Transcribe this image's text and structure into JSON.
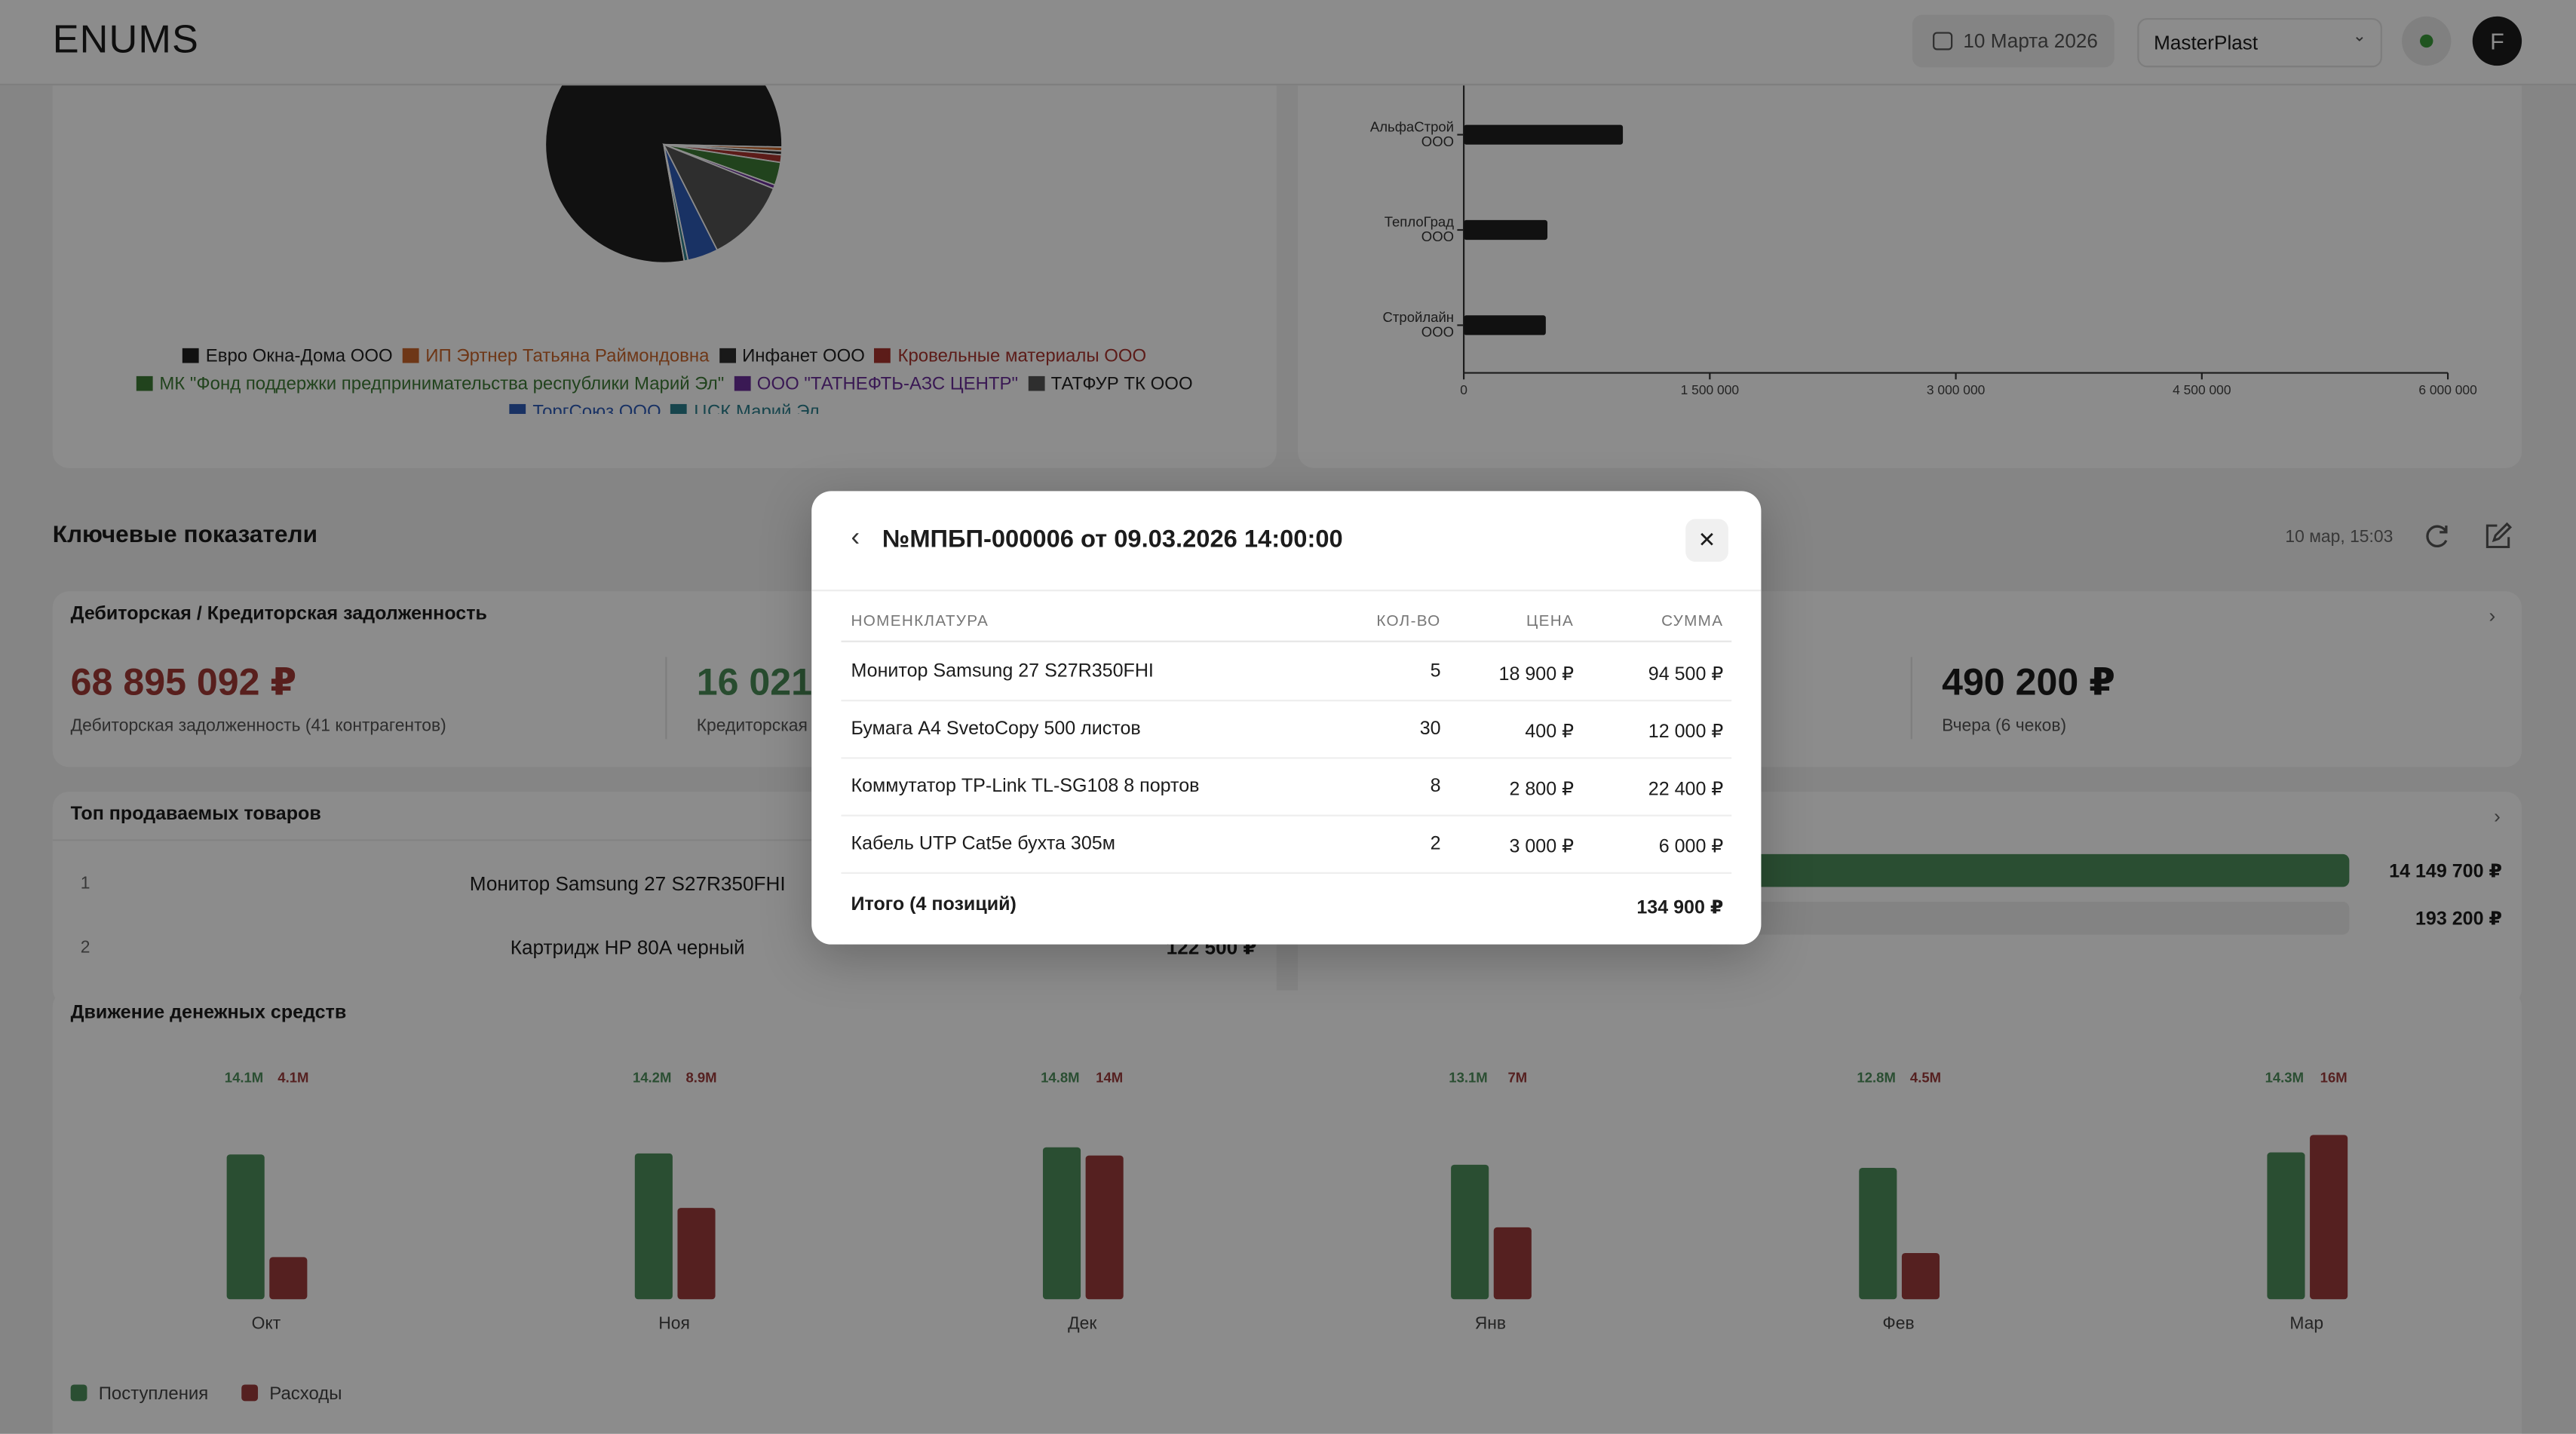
{
  "header": {
    "logo": "ENUMS",
    "date": "10 Марта 2026",
    "company": "MasterPlast",
    "avatar": "F"
  },
  "chart_data": [
    {
      "type": "pie",
      "categories": [
        "Евро Окна-Дома ООО",
        "ИП Эртнер Татьяна Раймондовна",
        "Инфанет ООО",
        "Кровельные материалы ООО",
        "МК \"Фонд поддержки предпринимательства республики Марий Эл\"",
        "ООО \"ТАТНЕФТЬ-АЗС ЦЕНТР\"",
        "ТАТФУР ТК ООО",
        "ТоргСоюз ООО",
        "ЦСК Марий Эл"
      ],
      "values": [
        75,
        0.5,
        0.5,
        1,
        3,
        0.5,
        11,
        4,
        0.5
      ],
      "colors": [
        "#1f1f1f",
        "#c8642a",
        "#2e2e2e",
        "#a8332e",
        "#3d7a36",
        "#6a2e9a",
        "#545454",
        "#2f5bb7",
        "#2b7f8c"
      ]
    },
    {
      "type": "hbar",
      "categories": [
        "АльфаСтрой ООО",
        "ТеплоГрад ООО",
        "Стройлайн ООО"
      ],
      "values": [
        970000,
        510000,
        500000
      ],
      "color": "#1f1f1f",
      "xlim": [
        0,
        6000000
      ],
      "xticks": [
        0,
        {
          "value": 1500000,
          "label": "1 500 000"
        },
        {
          "value": 3000000,
          "label": "3 000 000"
        },
        {
          "value": 4500000,
          "label": "4 500 000"
        },
        {
          "value": 6000000,
          "label": "6 000 000"
        }
      ]
    },
    {
      "type": "progress",
      "values": [
        14149700,
        193200
      ],
      "value_labels": [
        "14 149 700 ₽",
        "193 200 ₽"
      ],
      "color": "#4e8f5c"
    },
    {
      "type": "grouped_bar",
      "title": "Движение денежных средств",
      "categories": [
        "Окт",
        "Ноя",
        "Дек",
        "Янв",
        "Фев",
        "Мар"
      ],
      "series": [
        {
          "name": "Поступления",
          "color": "#4e8f5c",
          "values": [
            14100000,
            14200000,
            14800000,
            13100000,
            12800000,
            14300000
          ],
          "value_labels": [
            "14.1M",
            "14.2M",
            "14.8M",
            "13.1M",
            "12.8M",
            "14.3M"
          ]
        },
        {
          "name": "Расходы",
          "color": "#9c3b3b",
          "values": [
            4100000,
            8900000,
            14000000,
            7000000,
            4500000,
            16000000
          ],
          "value_labels": [
            "4.1M",
            "8.9M",
            "14M",
            "7M",
            "4.5M",
            "16M"
          ]
        }
      ]
    }
  ],
  "kpi": {
    "title": "Ключевые показатели",
    "updated": "10 мар, 15:03",
    "debt": {
      "title": "Дебиторская / Кредиторская задолженность",
      "receivable": "68 895 092 ₽",
      "receivable_label": "Дебиторская задолженность (41 контрагентов)",
      "payable": "16 021",
      "payable_label": "Кредиторская"
    },
    "sales": {
      "value": "490 200 ₽",
      "label": "Вчера (6 чеков)"
    }
  },
  "top_products": {
    "title": "Топ продаваемых товаров",
    "rows": [
      {
        "rank": "1",
        "name": "Монитор Samsung 27 S27R350FHI"
      },
      {
        "rank": "2",
        "name": "Картридж HP 80A черный",
        "amount": "122 500 ₽"
      }
    ]
  },
  "modal": {
    "title": "№МПБП-000006 от 09.03.2026 14:00:00",
    "columns": [
      "НОМЕНКЛАТУРА",
      "КОЛ-ВО",
      "ЦЕНА",
      "СУММА"
    ],
    "rows": [
      [
        "Монитор Samsung 27 S27R350FHI",
        "5",
        "18 900 ₽",
        "94 500 ₽"
      ],
      [
        "Бумага А4 SvetoCopy 500 листов",
        "30",
        "400 ₽",
        "12 000 ₽"
      ],
      [
        "Коммутатор TP-Link TL-SG108 8 портов",
        "8",
        "2 800 ₽",
        "22 400 ₽"
      ],
      [
        "Кабель UTP Cat5e бухта 305м",
        "2",
        "3 000 ₽",
        "6 000 ₽"
      ]
    ],
    "total_label": "Итого (4 позиций)",
    "total": "134 900 ₽"
  }
}
